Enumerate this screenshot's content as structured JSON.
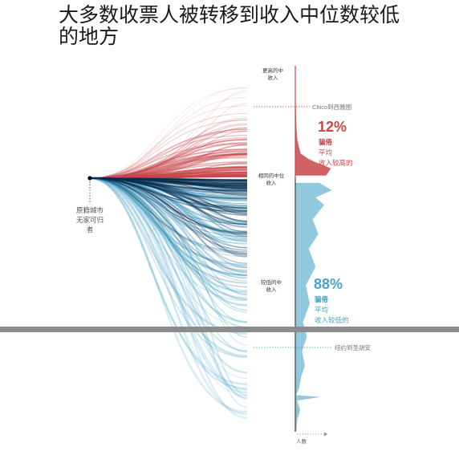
{
  "title_line1": "大多数收票人被转移到收入中位数较低",
  "title_line2": "的地方",
  "colors": {
    "higher": "#c8474b",
    "lower": "#4aa3c6",
    "dark": "#0c2d4e",
    "divider": "#8c8c8c",
    "axis": "#444444",
    "dotted": "#aaaaaa"
  },
  "chart_data": {
    "type": "area",
    "origin_label": [
      "原籍城市",
      "无家可归",
      "者"
    ],
    "y_axis_labels": {
      "top": [
        "更高的中",
        "收入"
      ],
      "middle": [
        "相同的中位",
        "收入"
      ],
      "bottom": [
        "较低的中",
        "收入"
      ]
    },
    "x_axis_label": "人数",
    "higher": {
      "percent": "12%",
      "lines": [
        "骗倦",
        "平均",
        "收入较高的"
      ]
    },
    "lower": {
      "percent": "88%",
      "lines": [
        "骗倦",
        "平均",
        "收入较低的"
      ]
    },
    "annotations": [
      {
        "text": "Chico到西雅图",
        "position": "upper"
      },
      {
        "text": "纽约到圣胡安",
        "position": "lower"
      }
    ],
    "distribution_profile": [
      [
        0.0,
        0.0
      ],
      [
        0.1,
        0.02
      ],
      [
        0.16,
        0.05
      ],
      [
        0.2,
        0.1
      ],
      [
        0.22,
        0.18
      ],
      [
        0.24,
        0.28
      ],
      [
        0.255,
        0.7
      ],
      [
        0.265,
        1.1
      ],
      [
        0.28,
        1.85
      ],
      [
        0.3,
        1.6
      ],
      [
        0.32,
        1.25
      ],
      [
        0.34,
        1.9
      ],
      [
        0.36,
        1.05
      ],
      [
        0.38,
        1.5
      ],
      [
        0.42,
        0.9
      ],
      [
        0.46,
        1.2
      ],
      [
        0.5,
        0.7
      ],
      [
        0.55,
        1.05
      ],
      [
        0.6,
        0.55
      ],
      [
        0.65,
        0.75
      ],
      [
        0.7,
        0.4
      ],
      [
        0.74,
        0.6
      ],
      [
        0.78,
        0.35
      ],
      [
        0.82,
        0.5
      ],
      [
        0.85,
        0.3
      ],
      [
        0.88,
        0.2
      ],
      [
        0.9,
        0.05
      ],
      [
        0.905,
        1.3
      ],
      [
        0.915,
        0.1
      ],
      [
        0.94,
        0.25
      ],
      [
        0.97,
        0.1
      ],
      [
        1.0,
        0.05
      ]
    ]
  }
}
